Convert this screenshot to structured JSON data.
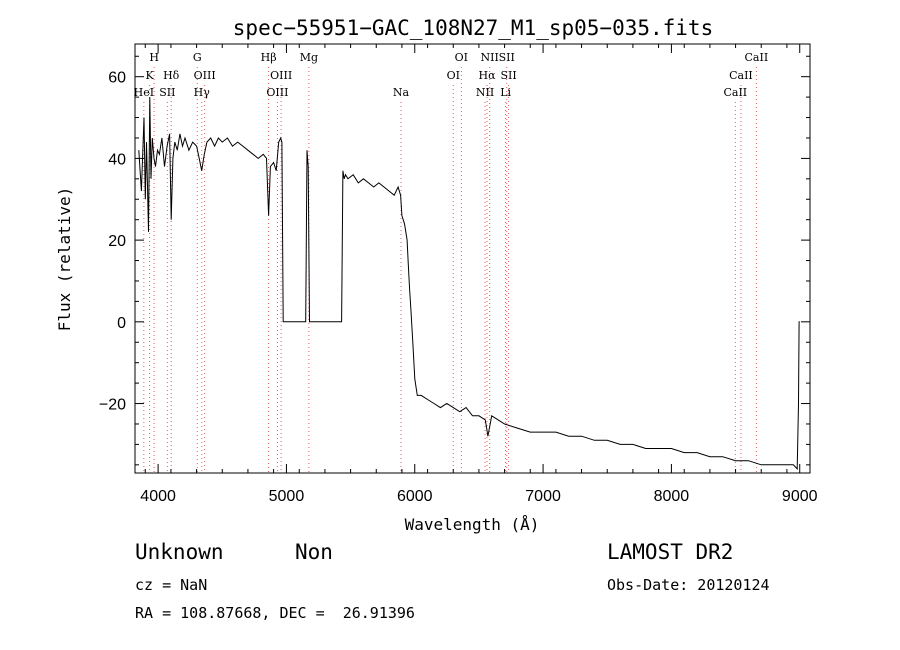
{
  "chart_data": {
    "type": "line",
    "title": "spec−55951−GAC_108N27_M1_sp05−035.fits",
    "xlabel": "Wavelength (Å)",
    "ylabel": "Flux (relative)",
    "xlim": [
      3820,
      9080
    ],
    "ylim": [
      -37,
      68
    ],
    "xticks": [
      4000,
      5000,
      6000,
      7000,
      8000,
      9000
    ],
    "xtick_labels": [
      "4000",
      "5000",
      "6000",
      "7000",
      "8000",
      "9000"
    ],
    "yticks": [
      -20,
      0,
      20,
      40,
      60
    ],
    "ytick_labels": [
      "−20",
      "0",
      "20",
      "40",
      "60"
    ],
    "grid": false,
    "series": [
      {
        "x": [
          3850,
          3870,
          3890,
          3900,
          3910,
          3925,
          3935,
          3945,
          3955,
          3968,
          3980,
          3995,
          4010,
          4030,
          4050,
          4070,
          4090,
          4102,
          4115,
          4130,
          4150,
          4170,
          4190,
          4210,
          4240,
          4270,
          4300,
          4320,
          4340,
          4360,
          4380,
          4410,
          4440,
          4470,
          4500,
          4540,
          4580,
          4620,
          4660,
          4700,
          4740,
          4780,
          4820,
          4845,
          4861,
          4875,
          4900,
          4920,
          4940,
          4955,
          4965,
          4975,
          4990,
          5060,
          5120,
          5150,
          5160,
          5170,
          5180,
          5190,
          5200,
          5250,
          5300,
          5340,
          5400,
          5430,
          5440,
          5450,
          5460,
          5480,
          5520,
          5560,
          5600,
          5640,
          5680,
          5720,
          5760,
          5800,
          5840,
          5870,
          5890,
          5900,
          5920,
          5940,
          5950,
          5960,
          5970,
          5985,
          6000,
          6020,
          6050,
          6100,
          6150,
          6200,
          6250,
          6300,
          6350,
          6400,
          6450,
          6500,
          6550,
          6570,
          6600,
          6650,
          6700,
          6800,
          6900,
          7000,
          7100,
          7200,
          7300,
          7400,
          7500,
          7600,
          7700,
          7800,
          7900,
          8000,
          8100,
          8200,
          8300,
          8400,
          8500,
          8600,
          8700,
          8800,
          8850,
          8900,
          8950,
          8980,
          8990,
          8995,
          9000
        ],
        "y": [
          42,
          32,
          50,
          30,
          44,
          22,
          55,
          35,
          45,
          40,
          38,
          42,
          41,
          45,
          38,
          43,
          46,
          25,
          40,
          44,
          42,
          46,
          43,
          45,
          42,
          44,
          43,
          40,
          37,
          41,
          44,
          45,
          43,
          45,
          44,
          45,
          43,
          44,
          43,
          42,
          41,
          40,
          41,
          40,
          26,
          38,
          39,
          37,
          44,
          45,
          44,
          0,
          0,
          0,
          0,
          0,
          42,
          38,
          0,
          0,
          0,
          0,
          0,
          0,
          0,
          0,
          37,
          35,
          36,
          35,
          36,
          34,
          35,
          34,
          33,
          34,
          33,
          32,
          31,
          33,
          31,
          26,
          24,
          20,
          14,
          8,
          3,
          -5,
          -14,
          -18,
          -18,
          -19,
          -20,
          -21,
          -20,
          -21,
          -22,
          -21,
          -23,
          -23,
          -24,
          -28,
          -23,
          -24,
          -25,
          -26,
          -27,
          -27,
          -27,
          -28,
          -28,
          -29,
          -29,
          -30,
          -30,
          -31,
          -31,
          -31,
          -32,
          -32,
          -33,
          -33,
          -34,
          -34,
          -35,
          -35,
          -35,
          -35,
          -35,
          -36,
          -20,
          0,
          0
        ]
      }
    ],
    "spectral_lines": [
      {
        "label": "H",
        "x": 3969,
        "row": 0
      },
      {
        "label": "K",
        "x": 3934,
        "row": 1
      },
      {
        "label": "HeI",
        "x": 3889,
        "row": 2
      },
      {
        "label": "Hδ",
        "x": 4102,
        "row": 1
      },
      {
        "label": "SII",
        "x": 4072,
        "row": 2
      },
      {
        "label": "G",
        "x": 4305,
        "row": 0
      },
      {
        "label": "OIII",
        "x": 4363,
        "row": 1
      },
      {
        "label": "Hγ",
        "x": 4340,
        "row": 2
      },
      {
        "label": "Hβ",
        "x": 4861,
        "row": 0
      },
      {
        "label": "OIII",
        "x": 4959,
        "row": 1
      },
      {
        "label": "OIII",
        "x": 4930,
        "row": 2
      },
      {
        "label": "Mg",
        "x": 5175,
        "row": 0
      },
      {
        "label": "Na",
        "x": 5893,
        "row": 2
      },
      {
        "label": "OI",
        "x": 6363,
        "row": 0
      },
      {
        "label": "OI",
        "x": 6300,
        "row": 1
      },
      {
        "label": "NII",
        "x": 6584,
        "row": 0
      },
      {
        "label": "Hα",
        "x": 6563,
        "row": 1
      },
      {
        "label": "NII",
        "x": 6548,
        "row": 2
      },
      {
        "label": "SII",
        "x": 6717,
        "row": 0
      },
      {
        "label": "SII",
        "x": 6731,
        "row": 1
      },
      {
        "label": "Li",
        "x": 6708,
        "row": 2
      },
      {
        "label": "CaII",
        "x": 8662,
        "row": 0
      },
      {
        "label": "CaII",
        "x": 8542,
        "row": 1
      },
      {
        "label": "CaII",
        "x": 8498,
        "row": 2
      }
    ]
  },
  "info": {
    "classification": "Unknown",
    "subclass": "Non",
    "survey": "LAMOST DR2",
    "cz": "cz = NaN",
    "obs_date": "Obs-Date: 20120124",
    "coords": "RA = 108.87668, DEC =  26.91396"
  },
  "colors": {
    "spectrum": "#000000",
    "line_marker": "#e85a5a",
    "axes": "#000000"
  }
}
